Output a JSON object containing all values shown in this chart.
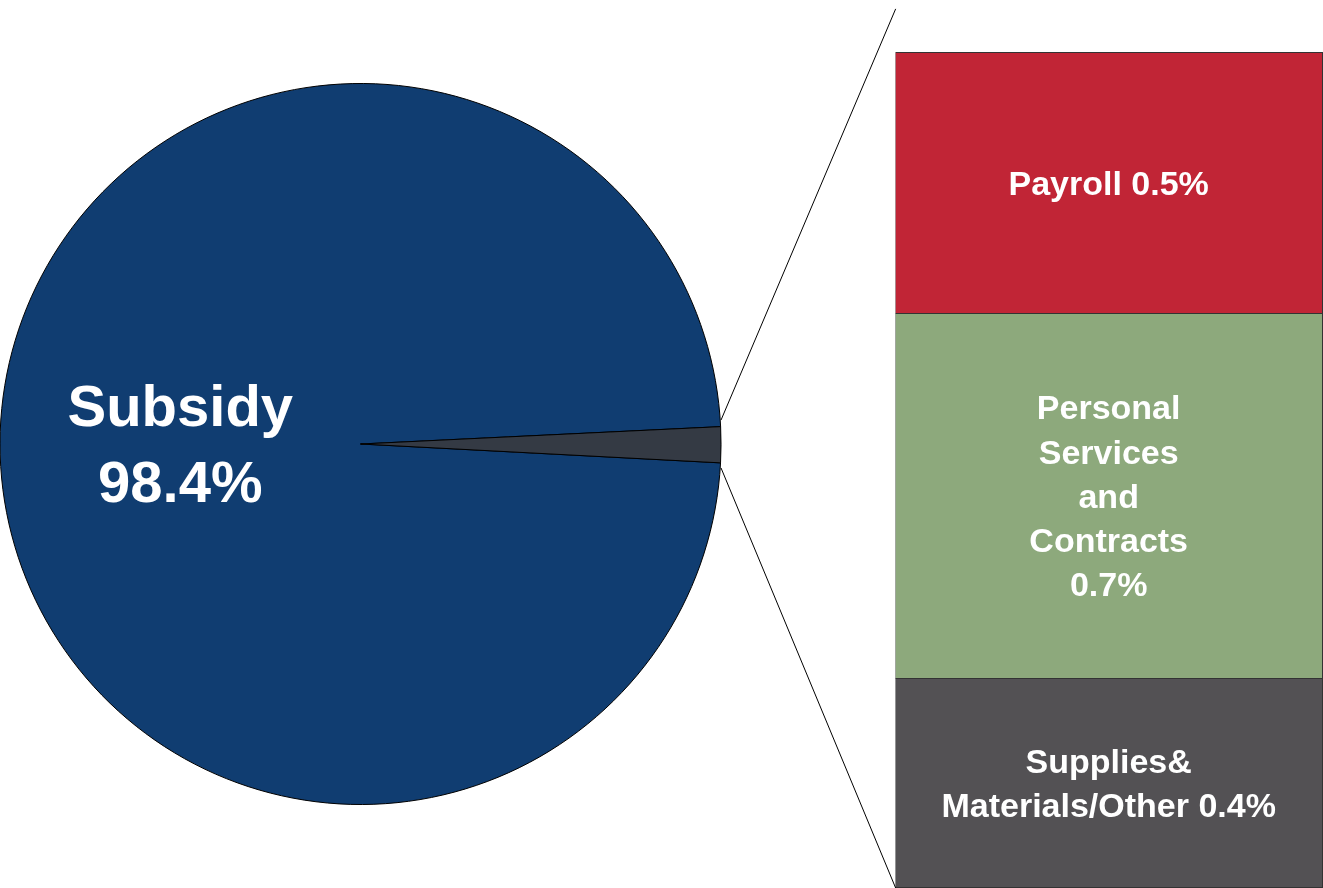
{
  "chart_data": [
    {
      "type": "pie",
      "categories": [
        "Subsidy",
        null
      ],
      "values": [
        98.4,
        1.6
      ],
      "colors": [
        "#103d71",
        "#343a44"
      ],
      "value_labels": [
        "98.4%",
        null
      ]
    },
    {
      "type": "bar",
      "stacked": true,
      "categories": [
        null
      ],
      "series": [
        {
          "color": "#535154",
          "values": [
            0.4
          ],
          "value_labels": [
            "Supplies&\nMaterials/Other 0.4%"
          ]
        },
        {
          "color": "#8da97c",
          "values": [
            0.7
          ],
          "value_labels": [
            "Personal\nServices\nand\nContracts\n0.7%"
          ]
        },
        {
          "color": "#c12536",
          "values": [
            0.5
          ],
          "value_labels": [
            "Payroll 0.5%"
          ]
        }
      ]
    }
  ]
}
